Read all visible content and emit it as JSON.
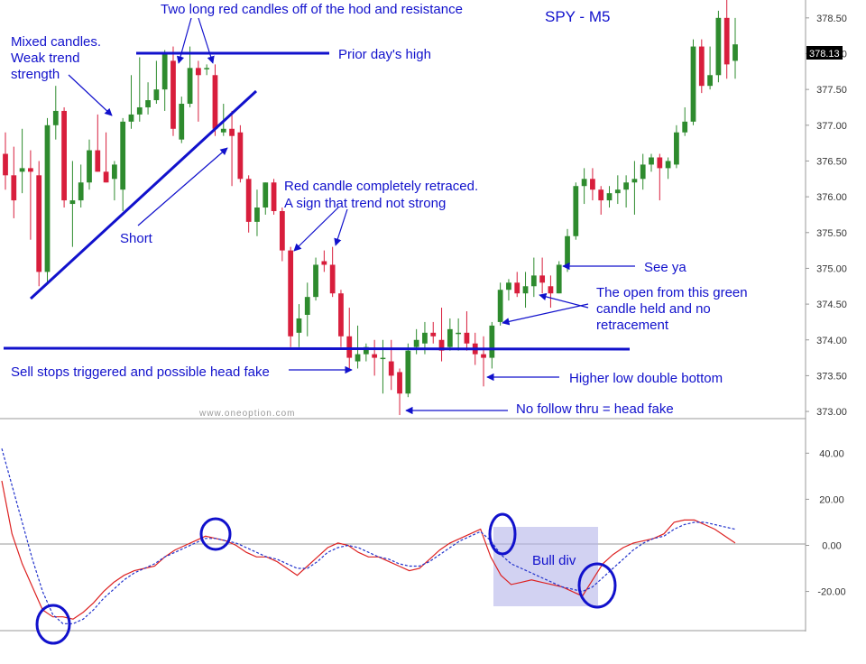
{
  "chart_data": [
    {
      "type": "candlestick",
      "title": "SPY - M5",
      "watermark": "www.oneoption.com",
      "ylim": [
        372.9,
        378.75
      ],
      "yticks": [
        "373.00",
        "373.50",
        "374.00",
        "374.50",
        "375.00",
        "375.50",
        "376.00",
        "376.50",
        "377.00",
        "377.50",
        "378.00",
        "378.50"
      ],
      "current_price": "378.13",
      "colors": {
        "up": "#2e8b2e",
        "down": "#d81e3c",
        "annotation": "#1111cc"
      },
      "candles": [
        {
          "o": 376.6,
          "h": 376.9,
          "l": 376.1,
          "c": 376.3
        },
        {
          "o": 376.3,
          "h": 376.7,
          "l": 375.7,
          "c": 375.95
        },
        {
          "o": 376.35,
          "h": 376.95,
          "l": 376.05,
          "c": 376.4
        },
        {
          "o": 376.4,
          "h": 376.65,
          "l": 375.4,
          "c": 376.35
        },
        {
          "o": 376.3,
          "h": 376.5,
          "l": 374.75,
          "c": 374.95
        },
        {
          "o": 374.95,
          "h": 377.1,
          "l": 374.8,
          "c": 377.0
        },
        {
          "o": 377.0,
          "h": 377.55,
          "l": 376.8,
          "c": 377.2
        },
        {
          "o": 377.2,
          "h": 377.25,
          "l": 375.85,
          "c": 375.95
        },
        {
          "o": 375.9,
          "h": 376.5,
          "l": 375.3,
          "c": 375.95
        },
        {
          "o": 375.95,
          "h": 376.45,
          "l": 375.85,
          "c": 376.2
        },
        {
          "o": 376.2,
          "h": 376.8,
          "l": 376.1,
          "c": 376.65
        },
        {
          "o": 376.65,
          "h": 377.15,
          "l": 376.35,
          "c": 376.35
        },
        {
          "o": 376.35,
          "h": 376.9,
          "l": 376.2,
          "c": 376.2
        },
        {
          "o": 376.25,
          "h": 376.5,
          "l": 375.95,
          "c": 376.45
        },
        {
          "o": 376.1,
          "h": 377.1,
          "l": 375.8,
          "c": 377.05
        },
        {
          "o": 377.05,
          "h": 377.7,
          "l": 376.95,
          "c": 377.15
        },
        {
          "o": 377.15,
          "h": 377.95,
          "l": 377.05,
          "c": 377.25
        },
        {
          "o": 377.25,
          "h": 377.6,
          "l": 377.15,
          "c": 377.35
        },
        {
          "o": 377.35,
          "h": 377.9,
          "l": 377.3,
          "c": 377.5
        },
        {
          "o": 377.5,
          "h": 378.05,
          "l": 377.2,
          "c": 378.0
        },
        {
          "o": 377.9,
          "h": 378.1,
          "l": 376.85,
          "c": 376.95
        },
        {
          "o": 376.8,
          "h": 377.4,
          "l": 376.75,
          "c": 377.3
        },
        {
          "o": 377.3,
          "h": 378.1,
          "l": 377.25,
          "c": 377.8
        },
        {
          "o": 377.8,
          "h": 377.9,
          "l": 377.05,
          "c": 377.7
        },
        {
          "o": 377.8,
          "h": 377.85,
          "l": 377.7,
          "c": 377.8
        },
        {
          "o": 377.7,
          "h": 377.85,
          "l": 376.85,
          "c": 376.95
        },
        {
          "o": 376.9,
          "h": 377.3,
          "l": 376.85,
          "c": 376.95
        },
        {
          "o": 376.95,
          "h": 377.2,
          "l": 376.15,
          "c": 376.85
        },
        {
          "o": 376.9,
          "h": 377.0,
          "l": 376.2,
          "c": 376.25
        },
        {
          "o": 376.25,
          "h": 376.3,
          "l": 375.5,
          "c": 375.65
        },
        {
          "o": 375.65,
          "h": 376.1,
          "l": 375.45,
          "c": 375.85
        },
        {
          "o": 375.85,
          "h": 376.2,
          "l": 375.75,
          "c": 376.2
        },
        {
          "o": 376.2,
          "h": 376.25,
          "l": 375.75,
          "c": 375.8
        },
        {
          "o": 375.8,
          "h": 375.85,
          "l": 375.1,
          "c": 375.25
        },
        {
          "o": 375.25,
          "h": 375.3,
          "l": 373.9,
          "c": 374.05
        },
        {
          "o": 374.1,
          "h": 374.5,
          "l": 373.9,
          "c": 374.3
        },
        {
          "o": 374.35,
          "h": 374.8,
          "l": 374.05,
          "c": 374.6
        },
        {
          "o": 374.6,
          "h": 375.15,
          "l": 374.55,
          "c": 375.05
        },
        {
          "o": 375.1,
          "h": 375.25,
          "l": 374.95,
          "c": 375.05
        },
        {
          "o": 375.05,
          "h": 375.3,
          "l": 374.6,
          "c": 374.65
        },
        {
          "o": 374.65,
          "h": 374.7,
          "l": 373.9,
          "c": 374.05
        },
        {
          "o": 374.05,
          "h": 374.45,
          "l": 373.6,
          "c": 373.75
        },
        {
          "o": 373.7,
          "h": 374.2,
          "l": 373.6,
          "c": 373.8
        },
        {
          "o": 373.8,
          "h": 373.95,
          "l": 373.7,
          "c": 373.9
        },
        {
          "o": 373.8,
          "h": 374.0,
          "l": 373.5,
          "c": 373.75
        },
        {
          "o": 373.75,
          "h": 374.0,
          "l": 373.25,
          "c": 373.75
        },
        {
          "o": 373.7,
          "h": 374.0,
          "l": 373.3,
          "c": 373.5
        },
        {
          "o": 373.55,
          "h": 373.6,
          "l": 372.95,
          "c": 373.25
        },
        {
          "o": 373.25,
          "h": 373.95,
          "l": 373.2,
          "c": 373.85
        },
        {
          "o": 373.9,
          "h": 374.15,
          "l": 373.8,
          "c": 374.0
        },
        {
          "o": 373.95,
          "h": 374.25,
          "l": 373.8,
          "c": 374.1
        },
        {
          "o": 374.1,
          "h": 374.25,
          "l": 373.95,
          "c": 374.05
        },
        {
          "o": 374.0,
          "h": 374.45,
          "l": 373.7,
          "c": 373.85
        },
        {
          "o": 373.9,
          "h": 374.3,
          "l": 373.85,
          "c": 374.15
        },
        {
          "o": 374.1,
          "h": 374.3,
          "l": 373.85,
          "c": 374.1
        },
        {
          "o": 374.1,
          "h": 374.4,
          "l": 373.85,
          "c": 373.95
        },
        {
          "o": 373.95,
          "h": 374.1,
          "l": 373.65,
          "c": 373.8
        },
        {
          "o": 373.8,
          "h": 374.05,
          "l": 373.35,
          "c": 373.75
        },
        {
          "o": 373.75,
          "h": 374.25,
          "l": 373.6,
          "c": 374.2
        },
        {
          "o": 374.25,
          "h": 374.8,
          "l": 374.2,
          "c": 374.7
        },
        {
          "o": 374.7,
          "h": 374.85,
          "l": 374.55,
          "c": 374.8
        },
        {
          "o": 374.8,
          "h": 374.95,
          "l": 374.6,
          "c": 374.65
        },
        {
          "o": 374.65,
          "h": 374.95,
          "l": 374.45,
          "c": 374.75
        },
        {
          "o": 374.75,
          "h": 375.15,
          "l": 374.6,
          "c": 374.9
        },
        {
          "o": 374.9,
          "h": 375.15,
          "l": 374.65,
          "c": 374.8
        },
        {
          "o": 374.75,
          "h": 374.9,
          "l": 374.45,
          "c": 374.65
        },
        {
          "o": 374.65,
          "h": 375.1,
          "l": 374.65,
          "c": 375.05
        },
        {
          "o": 375.05,
          "h": 375.55,
          "l": 374.95,
          "c": 375.45
        },
        {
          "o": 375.45,
          "h": 376.2,
          "l": 375.4,
          "c": 376.15
        },
        {
          "o": 376.15,
          "h": 376.4,
          "l": 375.9,
          "c": 376.25
        },
        {
          "o": 376.25,
          "h": 376.4,
          "l": 375.95,
          "c": 376.1
        },
        {
          "o": 376.1,
          "h": 376.15,
          "l": 375.75,
          "c": 375.95
        },
        {
          "o": 375.95,
          "h": 376.15,
          "l": 375.85,
          "c": 376.05
        },
        {
          "o": 376.05,
          "h": 376.3,
          "l": 375.9,
          "c": 376.1
        },
        {
          "o": 376.1,
          "h": 376.3,
          "l": 375.85,
          "c": 376.2
        },
        {
          "o": 376.2,
          "h": 376.5,
          "l": 375.75,
          "c": 376.25
        },
        {
          "o": 376.25,
          "h": 376.6,
          "l": 376.1,
          "c": 376.45
        },
        {
          "o": 376.45,
          "h": 376.6,
          "l": 376.35,
          "c": 376.55
        },
        {
          "o": 376.55,
          "h": 376.6,
          "l": 375.95,
          "c": 376.4
        },
        {
          "o": 376.4,
          "h": 376.55,
          "l": 376.25,
          "c": 376.5
        },
        {
          "o": 376.45,
          "h": 377.0,
          "l": 376.4,
          "c": 376.9
        },
        {
          "o": 376.9,
          "h": 377.25,
          "l": 376.85,
          "c": 377.05
        },
        {
          "o": 377.05,
          "h": 378.2,
          "l": 377.0,
          "c": 378.1
        },
        {
          "o": 378.1,
          "h": 378.2,
          "l": 377.45,
          "c": 377.55
        },
        {
          "o": 377.55,
          "h": 378.1,
          "l": 377.5,
          "c": 377.7
        },
        {
          "o": 377.7,
          "h": 378.6,
          "l": 377.6,
          "c": 378.5
        },
        {
          "o": 378.5,
          "h": 378.75,
          "l": 377.65,
          "c": 377.85
        },
        {
          "o": 377.9,
          "h": 378.5,
          "l": 377.65,
          "c": 378.13
        }
      ]
    },
    {
      "type": "line",
      "ylim": [
        -37,
        55
      ],
      "yticks": [
        "40.00",
        "20.00",
        "0.00",
        "-20.00"
      ],
      "series": [
        {
          "color": "#dd2222",
          "dash": false,
          "values": [
            28,
            5,
            -8,
            -18,
            -28,
            -31,
            -31,
            -32,
            -29,
            -25,
            -20,
            -16,
            -13,
            -11,
            -10,
            -9,
            -5,
            -2,
            0,
            2,
            4,
            3,
            2,
            0,
            -3,
            -5,
            -5,
            -7,
            -10,
            -13,
            -9,
            -5,
            -1,
            1,
            0,
            -3,
            -5,
            -5,
            -7,
            -9,
            -11,
            -10,
            -6,
            -2,
            1,
            3,
            5,
            7,
            -5,
            -13,
            -17,
            -16,
            -15,
            -16,
            -17,
            -18,
            -20,
            -22,
            -15,
            -8,
            -4,
            -1,
            1,
            2,
            3,
            5,
            10,
            11,
            11,
            9,
            7,
            4,
            1
          ]
        },
        {
          "color": "#2233cc",
          "dash": true,
          "values": [
            42,
            26,
            10,
            -6,
            -20,
            -30,
            -34,
            -34,
            -32,
            -28,
            -23,
            -19,
            -15,
            -12,
            -10,
            -8,
            -5,
            -3,
            -1,
            1,
            3,
            3,
            2,
            1,
            -1,
            -3,
            -5,
            -6,
            -8,
            -10,
            -10,
            -7,
            -3,
            -1,
            0,
            -1,
            -3,
            -5,
            -6,
            -8,
            -9,
            -9,
            -7,
            -4,
            -1,
            2,
            4,
            6,
            2,
            -4,
            -8,
            -10,
            -12,
            -14,
            -16,
            -18,
            -19,
            -20,
            -18,
            -14,
            -10,
            -6,
            -2,
            1,
            3,
            4,
            7,
            9,
            10,
            10,
            9,
            8,
            7
          ]
        }
      ]
    }
  ],
  "annotations": {
    "two_long_red": "Two long red candles off of the hod and resistance",
    "mixed_1": "Mixed candles.",
    "mixed_2": "Weak trend",
    "mixed_3": "strength",
    "prior_high": "Prior day's high",
    "red_retraced_1": "Red candle completely retraced.",
    "red_retraced_2": "A sign that trend not strong",
    "short": "Short",
    "see_ya": "See ya",
    "open_held_1": "The open from this green",
    "open_held_2": "candle held and no",
    "open_held_3": "retracement",
    "sell_stops": "Sell stops triggered and possible head fake",
    "higher_low": "Higher low double bottom",
    "no_follow": "No follow thru = head fake",
    "bull_div": "Bull div"
  }
}
